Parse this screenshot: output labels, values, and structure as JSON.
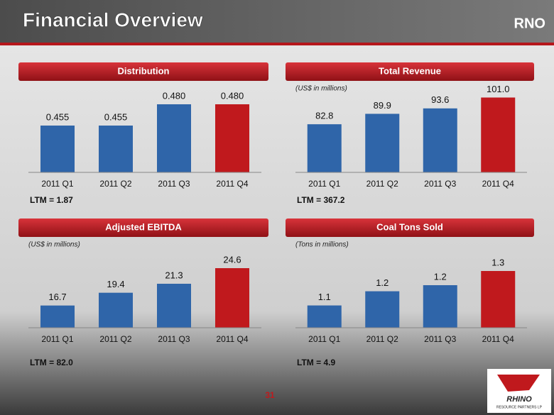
{
  "title": "Financial Overview",
  "ticker": "RNO",
  "page_number": "31",
  "logo": "RHINO",
  "logo_sub": "RESOURCE PARTNERS LP",
  "chart_data": [
    {
      "type": "bar",
      "title": "Distribution",
      "categories": [
        "2011 Q1",
        "2011 Q2",
        "2011 Q3",
        "2011 Q4"
      ],
      "values": [
        0.455,
        0.455,
        0.48,
        0.48
      ],
      "value_labels": [
        "0.455",
        "0.455",
        "0.480",
        "0.480"
      ],
      "colors": [
        "#2f65a9",
        "#2f65a9",
        "#2f65a9",
        "#c0191d"
      ],
      "ylim": [
        0.4,
        0.5
      ],
      "note": "LTM = 1.87"
    },
    {
      "type": "bar",
      "title": "Total Revenue",
      "subtitle": "(US$ in millions)",
      "categories": [
        "2011 Q1",
        "2011 Q2",
        "2011 Q3",
        "2011 Q4"
      ],
      "values": [
        82.8,
        89.9,
        93.6,
        101
      ],
      "value_labels": [
        "82.8",
        "89.9",
        "93.6",
        "101.0"
      ],
      "colors": [
        "#2f65a9",
        "#2f65a9",
        "#2f65a9",
        "#c0191d"
      ],
      "ylim": [
        50,
        108
      ],
      "note": "LTM = 367.2"
    },
    {
      "type": "bar",
      "title": "Adjusted EBITDA",
      "subtitle": "(US$ in millions)",
      "categories": [
        "2011 Q1",
        "2011 Q2",
        "2011 Q3",
        "2011 Q4"
      ],
      "values": [
        16.7,
        19.4,
        21.3,
        24.6
      ],
      "colors": [
        "#2f65a9",
        "#2f65a9",
        "#2f65a9",
        "#c0191d"
      ],
      "ylim": [
        12,
        30
      ],
      "note": "LTM = 82.0"
    },
    {
      "type": "bar",
      "title": "Coal Tons Sold",
      "subtitle": "(Tons in millions)",
      "categories": [
        "2011 Q1",
        "2011 Q2",
        "2011 Q3",
        "2011 Q4"
      ],
      "values": [
        1.14,
        1.21,
        1.24,
        1.31
      ],
      "value_labels": [
        "1.1",
        "1.2",
        "1.2",
        "1.3"
      ],
      "colors": [
        "#2f65a9",
        "#2f65a9",
        "#2f65a9",
        "#c0191d"
      ],
      "ylim": [
        1.03,
        1.45
      ],
      "note": "LTM = 4.9"
    }
  ]
}
